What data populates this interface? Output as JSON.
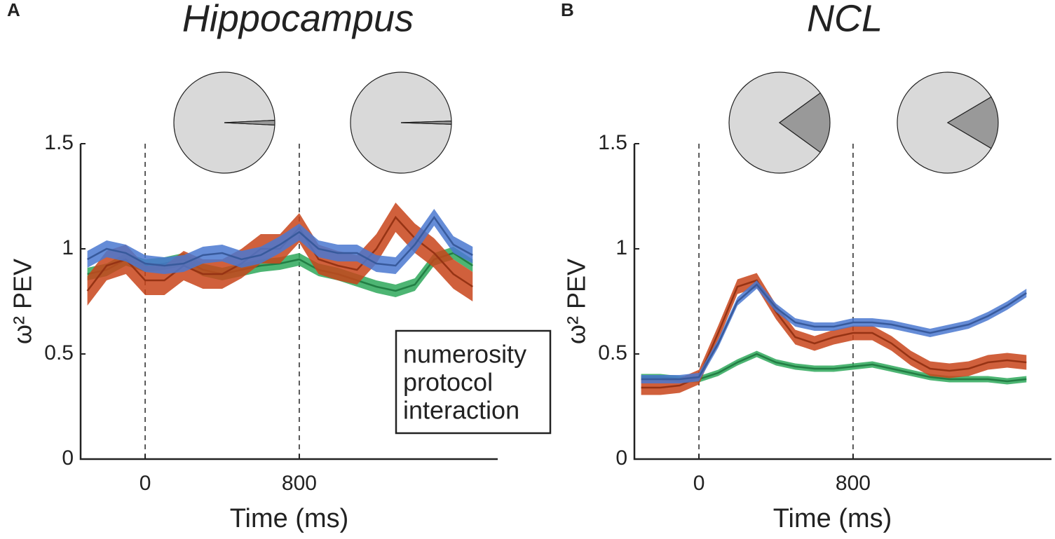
{
  "chart_data": [
    {
      "type": "line",
      "label": "A",
      "title": "Hippocampus",
      "xlabel": "Time (ms)",
      "ylabel": "ω² PEV",
      "x": [
        -300,
        -200,
        -100,
        0,
        100,
        200,
        300,
        400,
        500,
        600,
        700,
        800,
        900,
        1000,
        1100,
        1200,
        1300,
        1400,
        1500,
        1600,
        1700
      ],
      "xlim": [
        -335,
        1830
      ],
      "xticks": [
        0,
        800
      ],
      "ylim": [
        0,
        1.5
      ],
      "yticks": [
        0,
        0.5,
        1,
        1.5
      ],
      "xtick_lines": "dashed",
      "legend": "lower right",
      "series": [
        {
          "name": "numerosity",
          "color": "#4a78d0",
          "values": [
            0.95,
            1.0,
            0.98,
            0.93,
            0.92,
            0.93,
            0.97,
            0.98,
            0.95,
            0.97,
            1.02,
            1.08,
            1.0,
            0.98,
            0.98,
            0.93,
            0.92,
            1.02,
            1.15,
            1.02,
            0.97
          ],
          "errors": [
            0.04,
            0.04,
            0.04,
            0.04,
            0.04,
            0.04,
            0.04,
            0.04,
            0.04,
            0.04,
            0.04,
            0.04,
            0.04,
            0.04,
            0.04,
            0.04,
            0.04,
            0.04,
            0.04,
            0.04,
            0.04
          ]
        },
        {
          "name": "protocol",
          "color": "#c8441a",
          "values": [
            0.8,
            0.92,
            0.95,
            0.85,
            0.85,
            0.92,
            0.88,
            0.88,
            0.93,
            1.0,
            1.0,
            1.1,
            0.95,
            0.92,
            0.9,
            1.0,
            1.15,
            1.05,
            0.98,
            0.88,
            0.82
          ],
          "errors": [
            0.07,
            0.07,
            0.07,
            0.07,
            0.07,
            0.07,
            0.07,
            0.07,
            0.07,
            0.07,
            0.07,
            0.07,
            0.07,
            0.07,
            0.07,
            0.07,
            0.07,
            0.07,
            0.07,
            0.07,
            0.07
          ]
        },
        {
          "name": "interaction",
          "color": "#2ea85a",
          "values": [
            0.88,
            0.9,
            0.95,
            0.92,
            0.93,
            0.95,
            0.9,
            0.88,
            0.9,
            0.92,
            0.93,
            0.95,
            0.9,
            0.88,
            0.85,
            0.82,
            0.8,
            0.83,
            0.95,
            0.98,
            0.92
          ],
          "errors": [
            0.03,
            0.03,
            0.03,
            0.03,
            0.03,
            0.03,
            0.03,
            0.03,
            0.03,
            0.03,
            0.03,
            0.03,
            0.03,
            0.03,
            0.03,
            0.03,
            0.03,
            0.03,
            0.03,
            0.03,
            0.03
          ]
        }
      ]
    },
    {
      "type": "line",
      "label": "B",
      "title": "NCL",
      "xlabel": "Time (ms)",
      "ylabel": "ω² PEV",
      "x": [
        -300,
        -200,
        -100,
        0,
        100,
        200,
        300,
        400,
        500,
        600,
        700,
        800,
        900,
        1000,
        1100,
        1200,
        1300,
        1400,
        1500,
        1600,
        1700
      ],
      "xlim": [
        -335,
        1830
      ],
      "xticks": [
        0,
        800
      ],
      "ylim": [
        0,
        1.5
      ],
      "yticks": [
        0,
        0.5,
        1,
        1.5
      ],
      "xtick_lines": "dashed",
      "series": [
        {
          "name": "numerosity",
          "color": "#4a78d0",
          "values": [
            0.38,
            0.38,
            0.38,
            0.39,
            0.55,
            0.75,
            0.83,
            0.72,
            0.65,
            0.63,
            0.63,
            0.65,
            0.65,
            0.64,
            0.62,
            0.6,
            0.62,
            0.64,
            0.68,
            0.73,
            0.79
          ],
          "errors": [
            0.02,
            0.02,
            0.02,
            0.02,
            0.02,
            0.02,
            0.02,
            0.02,
            0.02,
            0.02,
            0.02,
            0.02,
            0.02,
            0.02,
            0.02,
            0.02,
            0.02,
            0.02,
            0.02,
            0.02,
            0.02
          ]
        },
        {
          "name": "protocol",
          "color": "#c8441a",
          "values": [
            0.34,
            0.34,
            0.35,
            0.39,
            0.6,
            0.82,
            0.85,
            0.7,
            0.58,
            0.55,
            0.58,
            0.6,
            0.6,
            0.55,
            0.48,
            0.43,
            0.42,
            0.43,
            0.46,
            0.47,
            0.46
          ],
          "errors": [
            0.035,
            0.035,
            0.035,
            0.035,
            0.035,
            0.035,
            0.035,
            0.035,
            0.035,
            0.035,
            0.035,
            0.035,
            0.035,
            0.035,
            0.035,
            0.035,
            0.035,
            0.035,
            0.035,
            0.035,
            0.035
          ]
        },
        {
          "name": "interaction",
          "color": "#2ea85a",
          "values": [
            0.39,
            0.39,
            0.38,
            0.38,
            0.41,
            0.46,
            0.5,
            0.46,
            0.44,
            0.43,
            0.43,
            0.44,
            0.45,
            0.43,
            0.41,
            0.39,
            0.38,
            0.38,
            0.38,
            0.37,
            0.38
          ],
          "errors": [
            0.015,
            0.015,
            0.015,
            0.015,
            0.015,
            0.015,
            0.015,
            0.015,
            0.015,
            0.015,
            0.015,
            0.015,
            0.015,
            0.015,
            0.015,
            0.015,
            0.015,
            0.015,
            0.015,
            0.015,
            0.015
          ]
        }
      ]
    },
    {
      "type": "pie",
      "values": [
        98.5,
        1.5
      ],
      "colors": [
        "#d9d9d9",
        "#999999"
      ]
    },
    {
      "type": "pie",
      "values": [
        99,
        1
      ],
      "colors": [
        "#d9d9d9",
        "#999999"
      ]
    },
    {
      "type": "pie",
      "values": [
        80,
        20
      ],
      "colors": [
        "#d9d9d9",
        "#999999"
      ]
    },
    {
      "type": "pie",
      "values": [
        83,
        17
      ],
      "colors": [
        "#d9d9d9",
        "#999999"
      ]
    }
  ]
}
